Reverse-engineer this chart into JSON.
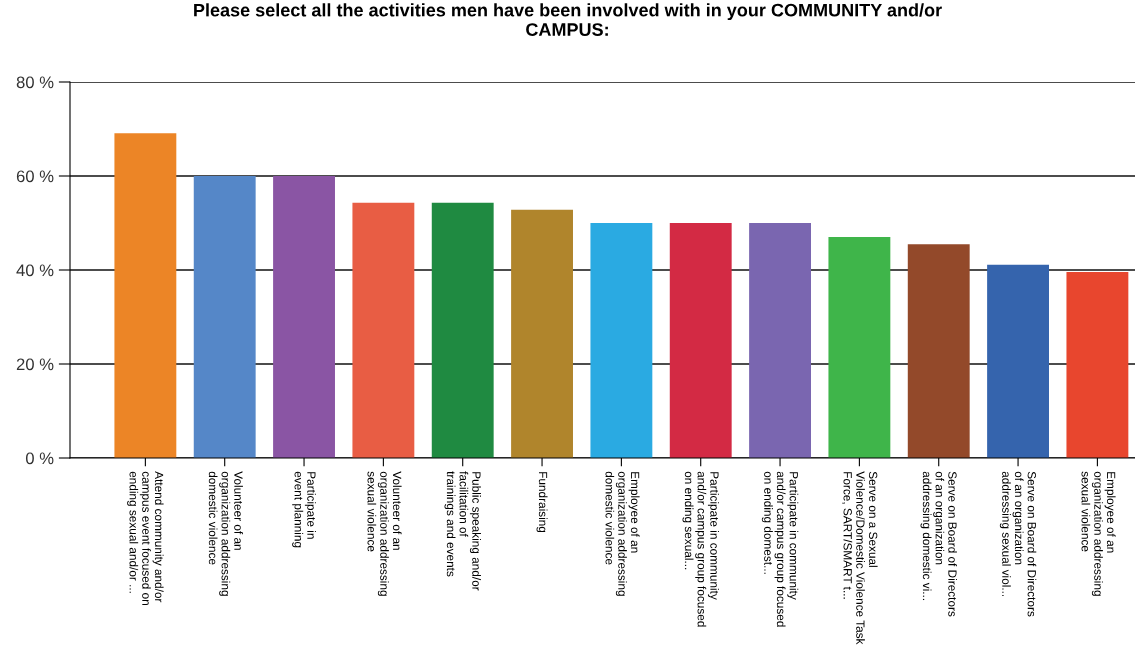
{
  "chart_data": {
    "type": "bar",
    "title": "Please select all the activities men have been involved with in your COMMUNITY and/or\nCAMPUS:",
    "categories": [
      "Attend community and/or\ncampus event focused on\nending sexual and/or ...",
      "Volunteer of an\norganization addressing\ndomestic violence",
      "Participate in\nevent planning",
      "Volunteer of an\norganization addressing\nsexual violence",
      "Public speaking and/or\nfacilitation of\ntrainings and events",
      "Fundraising",
      "Employee of an\norganization addressing\ndomestic violence",
      "Participate in community\nand/or campus group focused\non ending sexual...",
      "Participate in community\nand/or campus group focused\non ending domest...",
      "Serve on a Sexual\nViolence/Domestic Violence Task\nForce, SART/SMART t...",
      "Serve on Board of Directors\nof an organization\naddressing domestic vi...",
      "Serve on Board of Directors\nof an organization\naddressing sexual viol...",
      "Employee of an\norganization addressing\nsexual violence"
    ],
    "values": [
      69.1,
      60,
      60,
      54.3,
      54.3,
      52.8,
      50,
      50,
      50,
      47,
      45.5,
      41.1,
      39.6
    ],
    "colors": [
      "#ec8526",
      "#5587c8",
      "#8a55a4",
      "#e85d44",
      "#1f8a41",
      "#b0852c",
      "#2aaae2",
      "#d32a44",
      "#7a66b0",
      "#3fb54a",
      "#93492a",
      "#3564ad",
      "#e8462e"
    ],
    "ylim": [
      0,
      80
    ],
    "yticks": [
      {
        "value": 0,
        "label": "0 %"
      },
      {
        "value": 20,
        "label": "20 %"
      },
      {
        "value": 40,
        "label": "40 %"
      },
      {
        "value": 60,
        "label": "60 %"
      },
      {
        "value": 80,
        "label": "80 %"
      }
    ],
    "grid": "y"
  }
}
